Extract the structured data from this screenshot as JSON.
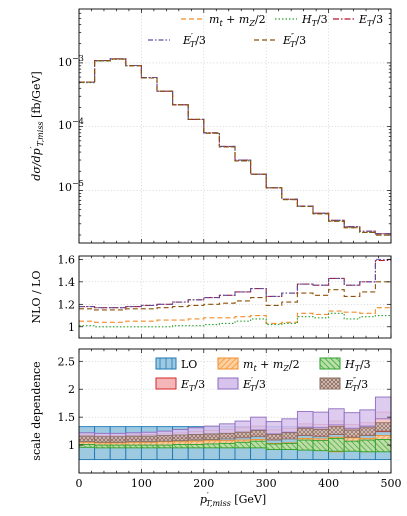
{
  "chart_data": [
    {
      "type": "line",
      "panel": "distribution",
      "ylabel": "dσ/dp'_{T,miss} [fb/GeV]",
      "yscale": "log",
      "ylim": [
        1.5e-06,
        0.007
      ],
      "xlim": [
        0,
        500
      ],
      "ytick_labels": [
        "10^-3",
        "10^-4",
        "10^-5"
      ],
      "grid": true,
      "legend_position": "top-right",
      "legend_layout": [
        [
          "m_t+m_Z/2",
          "H_T/3",
          "E_T/3"
        ],
        [
          "E'_T/3",
          "E''_T/3"
        ]
      ],
      "bin_edges": [
        0,
        25,
        50,
        75,
        100,
        125,
        150,
        175,
        200,
        225,
        250,
        275,
        300,
        325,
        350,
        375,
        400,
        425,
        450,
        475,
        500
      ],
      "series": [
        {
          "name": "m_t+m_Z/2",
          "color": "#f28e2b",
          "dash": "5,3",
          "values": [
            0.0005,
            0.00108,
            0.00115,
            0.0009,
            0.00058,
            0.00036,
            0.00022,
            0.00013,
            7.9e-05,
            4.8e-05,
            2.9e-05,
            1.8e-05,
            1.1e-05,
            7.2e-06,
            5.6e-06,
            4.3e-06,
            3.3e-06,
            2.6e-06,
            2.2e-06,
            2e-06
          ]
        },
        {
          "name": "H_T/3",
          "color": "#2ca02c",
          "dash": "1.5,2",
          "values": [
            0.00049,
            0.00107,
            0.00114,
            0.0009,
            0.00058,
            0.00036,
            0.00022,
            0.00013,
            7.9e-05,
            4.8e-05,
            2.9e-05,
            1.8e-05,
            1.1e-05,
            7.2e-06,
            5.6e-06,
            4.3e-06,
            3.3e-06,
            2.6e-06,
            2.2e-06,
            2e-06
          ]
        },
        {
          "name": "E_T/3",
          "color": "#b2182b",
          "dash": "6,2,1.5,2",
          "values": [
            0.0005,
            0.00109,
            0.00116,
            0.00091,
            0.00059,
            0.00036,
            0.00022,
            0.00013,
            8e-05,
            4.9e-05,
            3e-05,
            1.8e-05,
            1.1e-05,
            7.3e-06,
            5.7e-06,
            4.4e-06,
            3.4e-06,
            2.7e-06,
            2.3e-06,
            2.1e-06
          ]
        },
        {
          "name": "E'_T/3",
          "color": "#5e4fa2",
          "dash": "5,2,1.5,2",
          "values": [
            0.0005,
            0.00109,
            0.00116,
            0.00091,
            0.00059,
            0.00036,
            0.00022,
            0.00013,
            8e-05,
            4.9e-05,
            3e-05,
            1.8e-05,
            1.1e-05,
            7.3e-06,
            5.7e-06,
            4.4e-06,
            3.4e-06,
            2.7e-06,
            2.3e-06,
            2.1e-06
          ]
        },
        {
          "name": "E''_T/3",
          "color": "#8c510a",
          "dash": "5,3",
          "values": [
            0.0005,
            0.00108,
            0.00115,
            0.0009,
            0.00058,
            0.00036,
            0.00022,
            0.00013,
            7.9e-05,
            4.8e-05,
            2.9e-05,
            1.8e-05,
            1.1e-05,
            7.2e-06,
            5.6e-06,
            4.3e-06,
            3.3e-06,
            2.6e-06,
            2.2e-06,
            2e-06
          ]
        }
      ]
    },
    {
      "type": "line",
      "panel": "ratio",
      "ylabel": "NLO / LO",
      "ylim": [
        0.9,
        1.63
      ],
      "xlim": [
        0,
        500
      ],
      "yticks": [
        1,
        1.2,
        1.4,
        1.6
      ],
      "ytick_labels": [
        "1",
        "1.2",
        "1.4",
        "1.6"
      ],
      "grid": true,
      "bin_edges": [
        0,
        25,
        50,
        75,
        100,
        125,
        150,
        175,
        200,
        225,
        250,
        275,
        300,
        325,
        350,
        375,
        400,
        425,
        450,
        475,
        500
      ],
      "series": [
        {
          "name": "m_t+m_Z/2",
          "color": "#f28e2b",
          "dash": "5,3",
          "values": [
            1.05,
            1.04,
            1.04,
            1.05,
            1.05,
            1.06,
            1.06,
            1.07,
            1.08,
            1.08,
            1.09,
            1.1,
            1.03,
            1.04,
            1.12,
            1.11,
            1.14,
            1.13,
            1.12,
            1.17
          ]
        },
        {
          "name": "H_T/3",
          "color": "#2ca02c",
          "dash": "1.5,2",
          "values": [
            1.01,
            1.0,
            1.0,
            1.0,
            1.0,
            1.0,
            1.01,
            1.01,
            1.02,
            1.03,
            1.05,
            1.07,
            1.02,
            1.03,
            1.09,
            1.08,
            1.12,
            1.07,
            1.09,
            1.1
          ]
        },
        {
          "name": "E_T/3",
          "color": "#b2182b",
          "dash": "6,2,1.5,2",
          "values": [
            1.18,
            1.17,
            1.17,
            1.18,
            1.19,
            1.2,
            1.22,
            1.24,
            1.26,
            1.28,
            1.31,
            1.34,
            1.27,
            1.3,
            1.38,
            1.37,
            1.43,
            1.37,
            1.4,
            1.59
          ]
        },
        {
          "name": "E'_T/3",
          "color": "#5e4fa2",
          "dash": "5,2,1.5,2",
          "values": [
            1.18,
            1.17,
            1.17,
            1.18,
            1.19,
            1.2,
            1.22,
            1.24,
            1.26,
            1.28,
            1.31,
            1.34,
            1.27,
            1.3,
            1.38,
            1.37,
            1.43,
            1.37,
            1.4,
            1.6
          ]
        },
        {
          "name": "E''_T/3",
          "color": "#8c510a",
          "dash": "5,3",
          "values": [
            1.16,
            1.15,
            1.15,
            1.16,
            1.16,
            1.17,
            1.18,
            1.19,
            1.2,
            1.21,
            1.23,
            1.26,
            1.19,
            1.22,
            1.3,
            1.28,
            1.33,
            1.27,
            1.31,
            1.4
          ]
        }
      ]
    },
    {
      "type": "area",
      "panel": "scale-dependence",
      "ylabel": "scale dependence",
      "xlabel": "p'_{T,miss} [GeV]",
      "ylim": [
        0.5,
        2.72
      ],
      "xlim": [
        0,
        500
      ],
      "yticks": [
        1,
        1.5,
        2,
        2.5
      ],
      "ytick_labels": [
        "1",
        "1.5",
        "2",
        "2.5"
      ],
      "xticks": [
        0,
        100,
        200,
        300,
        400,
        500
      ],
      "xtick_labels": [
        "0",
        "100",
        "200",
        "300",
        "400",
        "500"
      ],
      "grid": true,
      "legend_position": "top-right",
      "legend_layout": [
        [
          "LO",
          "m_t+m_Z/2",
          "H_T/3"
        ],
        [
          "E_T/3",
          "E'_T/3",
          "E''_T/3"
        ]
      ],
      "bin_edges": [
        0,
        25,
        50,
        75,
        100,
        125,
        150,
        175,
        200,
        225,
        250,
        275,
        300,
        325,
        350,
        375,
        400,
        425,
        450,
        475,
        500
      ],
      "series": [
        {
          "name": "LO",
          "color": "#1f77b4",
          "fill": "#9ecae1",
          "lower": [
            0.74,
            0.74,
            0.74,
            0.74,
            0.74,
            0.74,
            0.74,
            0.74,
            0.74,
            0.74,
            0.74,
            0.74,
            0.74,
            0.74,
            0.74,
            0.74,
            0.74,
            0.74,
            0.74,
            0.74
          ],
          "upper": [
            1.33,
            1.33,
            1.33,
            1.33,
            1.33,
            1.33,
            1.33,
            1.33,
            1.33,
            1.33,
            1.33,
            1.33,
            1.33,
            1.33,
            1.33,
            1.33,
            1.33,
            1.33,
            1.33,
            1.33
          ]
        },
        {
          "name": "m_t+m_Z/2",
          "color": "#f28e2b",
          "fill": "#fdd0a2",
          "lower": [
            0.97,
            0.96,
            0.96,
            0.96,
            0.96,
            0.96,
            0.96,
            0.96,
            0.96,
            0.96,
            0.96,
            0.96,
            0.93,
            0.93,
            0.92,
            0.91,
            0.88,
            0.9,
            0.88,
            0.9
          ],
          "upper": [
            1.05,
            1.04,
            1.04,
            1.05,
            1.05,
            1.06,
            1.06,
            1.07,
            1.08,
            1.08,
            1.09,
            1.1,
            1.03,
            1.04,
            1.12,
            1.11,
            1.14,
            1.13,
            1.12,
            1.17
          ]
        },
        {
          "name": "H_T/3",
          "color": "#2ca02c",
          "fill": "#b8e0a8",
          "lower": [
            0.96,
            0.95,
            0.95,
            0.95,
            0.95,
            0.95,
            0.95,
            0.95,
            0.95,
            0.95,
            0.95,
            0.95,
            0.92,
            0.92,
            0.91,
            0.9,
            0.89,
            0.89,
            0.88,
            0.88
          ],
          "upper": [
            1.01,
            1.0,
            1.0,
            1.0,
            1.0,
            1.0,
            1.01,
            1.01,
            1.02,
            1.03,
            1.05,
            1.07,
            1.02,
            1.03,
            1.09,
            1.08,
            1.12,
            1.07,
            1.09,
            1.1
          ]
        },
        {
          "name": "E_T/3",
          "color": "#d62728",
          "fill": "#f4b6b8",
          "lower": [
            1.1,
            1.09,
            1.09,
            1.1,
            1.1,
            1.11,
            1.12,
            1.13,
            1.14,
            1.15,
            1.16,
            1.18,
            1.12,
            1.14,
            1.18,
            1.17,
            1.19,
            1.16,
            1.18,
            1.24
          ],
          "upper": [
            1.18,
            1.17,
            1.17,
            1.18,
            1.19,
            1.2,
            1.22,
            1.24,
            1.26,
            1.28,
            1.31,
            1.34,
            1.27,
            1.3,
            1.38,
            1.37,
            1.43,
            1.37,
            1.4,
            1.59
          ]
        },
        {
          "name": "E'_T/3",
          "color": "#8e6bbf",
          "fill": "#d7c3ec",
          "lower": [
            1.12,
            1.11,
            1.11,
            1.12,
            1.12,
            1.13,
            1.14,
            1.16,
            1.18,
            1.2,
            1.23,
            1.27,
            1.2,
            1.23,
            1.32,
            1.31,
            1.36,
            1.3,
            1.34,
            1.47
          ],
          "upper": [
            1.22,
            1.21,
            1.21,
            1.22,
            1.23,
            1.25,
            1.28,
            1.31,
            1.34,
            1.38,
            1.43,
            1.5,
            1.42,
            1.47,
            1.6,
            1.59,
            1.65,
            1.58,
            1.63,
            1.86
          ]
        },
        {
          "name": "E''_T/3",
          "color": "#8c6d62",
          "fill": "#ddc8bd",
          "lower": [
            1.06,
            1.05,
            1.05,
            1.06,
            1.06,
            1.07,
            1.08,
            1.09,
            1.1,
            1.11,
            1.13,
            1.15,
            1.09,
            1.11,
            1.17,
            1.15,
            1.19,
            1.14,
            1.17,
            1.25
          ],
          "upper": [
            1.16,
            1.15,
            1.15,
            1.16,
            1.16,
            1.17,
            1.18,
            1.19,
            1.2,
            1.21,
            1.23,
            1.26,
            1.19,
            1.22,
            1.3,
            1.28,
            1.33,
            1.27,
            1.31,
            1.4
          ]
        }
      ]
    }
  ]
}
